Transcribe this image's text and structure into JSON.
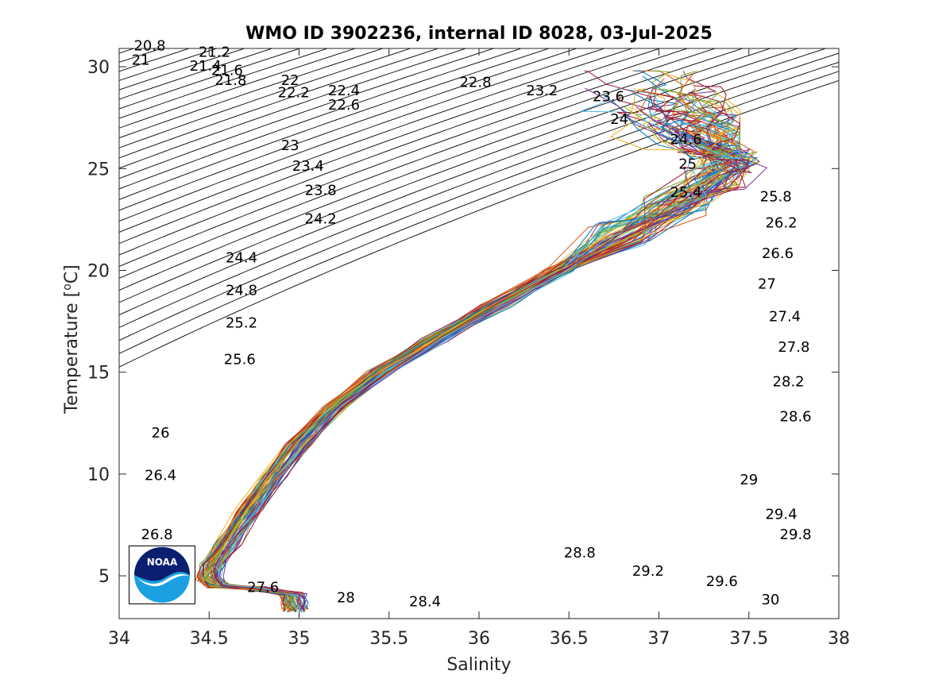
{
  "chart_data": {
    "type": "line",
    "title": "WMO ID 3902236, internal ID 8028, 03-Jul-2025",
    "xlabel": "Salinity",
    "ylabel_text": "Temperature [",
    "ylabel_sup": "o",
    "ylabel_unit": "C]",
    "xlim": [
      34,
      38
    ],
    "ylim": [
      2.9,
      30.9
    ],
    "x_ticks": [
      34,
      34.5,
      35,
      35.5,
      36,
      36.5,
      37,
      37.5,
      38
    ],
    "x_tick_labels": [
      "34",
      "34.5",
      "35",
      "35.5",
      "36",
      "36.5",
      "37",
      "37.5",
      "38"
    ],
    "y_ticks": [
      5,
      10,
      15,
      20,
      25,
      30
    ],
    "y_tick_labels": [
      "5",
      "10",
      "15",
      "20",
      "25",
      "30"
    ],
    "grid": false,
    "legend": "none",
    "isopycnal_labels": [
      {
        "text": "20.8",
        "s": 34.17,
        "t": 30.8
      },
      {
        "text": "21",
        "s": 34.12,
        "t": 30.1
      },
      {
        "text": "21.2",
        "s": 34.53,
        "t": 30.5
      },
      {
        "text": "21.4",
        "s": 34.48,
        "t": 29.8
      },
      {
        "text": "21.6",
        "s": 34.6,
        "t": 29.6
      },
      {
        "text": "21.8",
        "s": 34.62,
        "t": 29.1
      },
      {
        "text": "22",
        "s": 34.95,
        "t": 29.1
      },
      {
        "text": "22.2",
        "s": 34.97,
        "t": 28.5
      },
      {
        "text": "22.4",
        "s": 35.25,
        "t": 28.6
      },
      {
        "text": "22.6",
        "s": 35.25,
        "t": 27.9
      },
      {
        "text": "22.8",
        "s": 35.98,
        "t": 29.0
      },
      {
        "text": "23.2",
        "s": 36.35,
        "t": 28.6
      },
      {
        "text": "23.6",
        "s": 36.72,
        "t": 28.3
      },
      {
        "text": "24",
        "s": 36.78,
        "t": 27.2
      },
      {
        "text": "24.6",
        "s": 37.15,
        "t": 26.2
      },
      {
        "text": "25",
        "s": 37.16,
        "t": 25.0
      },
      {
        "text": "25.4",
        "s": 37.15,
        "t": 23.6
      },
      {
        "text": "25.8",
        "s": 37.65,
        "t": 23.4
      },
      {
        "text": "26.2",
        "s": 37.68,
        "t": 22.1
      },
      {
        "text": "26.6",
        "s": 37.66,
        "t": 20.6
      },
      {
        "text": "27",
        "s": 37.6,
        "t": 19.1
      },
      {
        "text": "27.4",
        "s": 37.7,
        "t": 17.5
      },
      {
        "text": "27.8",
        "s": 37.75,
        "t": 16.0
      },
      {
        "text": "28.2",
        "s": 37.72,
        "t": 14.3
      },
      {
        "text": "28.6",
        "s": 37.76,
        "t": 12.6
      },
      {
        "text": "23",
        "s": 34.95,
        "t": 25.9
      },
      {
        "text": "23.4",
        "s": 35.05,
        "t": 24.9
      },
      {
        "text": "23.8",
        "s": 35.12,
        "t": 23.7
      },
      {
        "text": "24.2",
        "s": 35.12,
        "t": 22.3
      },
      {
        "text": "24.4",
        "s": 34.68,
        "t": 20.4
      },
      {
        "text": "24.8",
        "s": 34.68,
        "t": 18.8
      },
      {
        "text": "25.2",
        "s": 34.68,
        "t": 17.2
      },
      {
        "text": "25.6",
        "s": 34.67,
        "t": 15.4
      },
      {
        "text": "26",
        "s": 34.23,
        "t": 11.8
      },
      {
        "text": "26.4",
        "s": 34.23,
        "t": 9.7
      },
      {
        "text": "26.8",
        "s": 34.21,
        "t": 6.8
      },
      {
        "text": "27.6",
        "s": 34.8,
        "t": 4.2
      },
      {
        "text": "28",
        "s": 35.26,
        "t": 3.7
      },
      {
        "text": "28.4",
        "s": 35.7,
        "t": 3.5
      },
      {
        "text": "28.8",
        "s": 36.56,
        "t": 5.9
      },
      {
        "text": "29.2",
        "s": 36.94,
        "t": 5.0
      },
      {
        "text": "29.6",
        "s": 37.35,
        "t": 4.5
      },
      {
        "text": "29",
        "s": 37.5,
        "t": 9.5
      },
      {
        "text": "29.4",
        "s": 37.68,
        "t": 7.8
      },
      {
        "text": "29.8",
        "s": 37.76,
        "t": 6.8
      },
      {
        "text": "30",
        "s": 37.62,
        "t": 3.6
      }
    ],
    "profile_mean": [
      {
        "s": 34.98,
        "t": 3.3
      },
      {
        "s": 34.97,
        "t": 3.7
      },
      {
        "s": 34.96,
        "t": 4.1
      },
      {
        "s": 34.75,
        "t": 4.4
      },
      {
        "s": 34.55,
        "t": 4.5
      },
      {
        "s": 34.5,
        "t": 4.9
      },
      {
        "s": 34.52,
        "t": 5.5
      },
      {
        "s": 34.6,
        "t": 6.6
      },
      {
        "s": 34.72,
        "t": 8.2
      },
      {
        "s": 34.85,
        "t": 9.8
      },
      {
        "s": 35.0,
        "t": 11.5
      },
      {
        "s": 35.2,
        "t": 13.3
      },
      {
        "s": 35.45,
        "t": 15.0
      },
      {
        "s": 35.75,
        "t": 16.6
      },
      {
        "s": 36.1,
        "t": 18.3
      },
      {
        "s": 36.45,
        "t": 20.0
      },
      {
        "s": 36.8,
        "t": 21.8
      },
      {
        "s": 37.1,
        "t": 23.3
      },
      {
        "s": 37.3,
        "t": 24.5
      },
      {
        "s": 37.4,
        "t": 25.4
      }
    ],
    "series_colors": [
      "#0072bd",
      "#d95319",
      "#edb120",
      "#7e2f8e",
      "#77ac30",
      "#4dbeee",
      "#a2142f"
    ],
    "profile_count": 70
  },
  "logo": {
    "text": "NOAA",
    "colors": {
      "top": "#0a1f6f",
      "bottom": "#1ba1e2",
      "bird": "#ffffff"
    }
  }
}
